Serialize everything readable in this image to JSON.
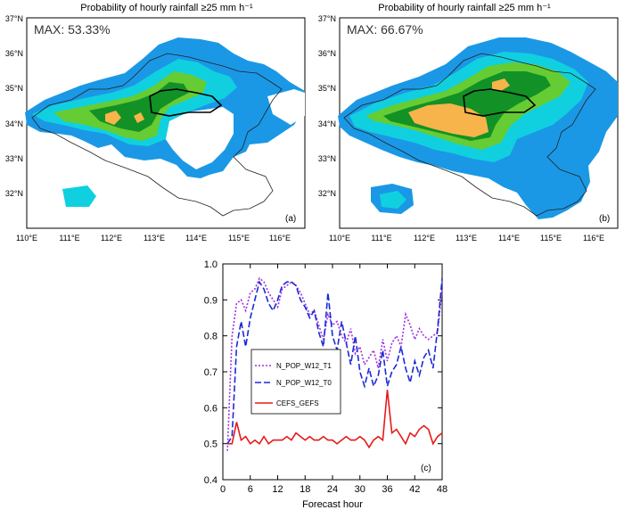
{
  "panels": [
    {
      "title": "Probability of hourly rainfall ≥25 mm h⁻¹",
      "max_label": "MAX: 53.33%",
      "panel_label": "(a)"
    },
    {
      "title": "Probability of hourly rainfall ≥25 mm h⁻¹",
      "max_label": "MAX: 66.67%",
      "panel_label": "(b)"
    }
  ],
  "map_axes": {
    "lat_ticks": [
      "37°N",
      "36°N",
      "35°N",
      "34°N",
      "33°N",
      "32°N"
    ],
    "lon_ticks": [
      "110°E",
      "111°E",
      "112°E",
      "113°E",
      "114°E",
      "115°E",
      "116°E"
    ]
  },
  "colors": {
    "blue": "#1a98e6",
    "cyan": "#10d0e0",
    "green": "#66cc33",
    "dark_green": "#129126",
    "orange": "#f7b44a",
    "series_t1": "#a030e0",
    "series_t0": "#1a2ad8",
    "series_cefs": "#e61a1a"
  },
  "chart_data": {
    "type": "line",
    "panel_label": "(c)",
    "xlabel": "Forecast hour",
    "ylabel": "",
    "xlim": [
      0,
      48
    ],
    "ylim": [
      0.4,
      1.0
    ],
    "x_ticks": [
      0,
      6,
      12,
      18,
      24,
      30,
      36,
      42,
      48
    ],
    "y_ticks": [
      "0.4",
      "0.5",
      "0.6",
      "0.7",
      "0.8",
      "0.9",
      "1.0"
    ],
    "x": [
      1,
      2,
      3,
      4,
      5,
      6,
      7,
      8,
      9,
      10,
      11,
      12,
      13,
      14,
      15,
      16,
      17,
      18,
      19,
      20,
      21,
      22,
      23,
      24,
      25,
      26,
      27,
      28,
      29,
      30,
      31,
      32,
      33,
      34,
      35,
      36,
      37,
      38,
      39,
      40,
      41,
      42,
      43,
      44,
      45,
      46,
      47,
      48
    ],
    "series": [
      {
        "name": "N_POP_W12_T1",
        "style": "dotted",
        "values": [
          0.48,
          0.8,
          0.89,
          0.9,
          0.87,
          0.92,
          0.93,
          0.96,
          0.95,
          0.92,
          0.9,
          0.88,
          0.93,
          0.94,
          0.95,
          0.94,
          0.92,
          0.89,
          0.86,
          0.87,
          0.83,
          0.79,
          0.86,
          0.83,
          0.84,
          0.8,
          0.78,
          0.82,
          0.75,
          0.77,
          0.72,
          0.74,
          0.76,
          0.71,
          0.79,
          0.73,
          0.78,
          0.8,
          0.77,
          0.86,
          0.83,
          0.79,
          0.82,
          0.8,
          0.79,
          0.8,
          0.81,
          0.93
        ]
      },
      {
        "name": "N_POP_W12_T0",
        "style": "dashed",
        "values": [
          0.5,
          0.52,
          0.77,
          0.84,
          0.77,
          0.85,
          0.9,
          0.95,
          0.93,
          0.89,
          0.87,
          0.9,
          0.94,
          0.95,
          0.95,
          0.94,
          0.9,
          0.88,
          0.85,
          0.87,
          0.81,
          0.77,
          0.92,
          0.8,
          0.76,
          0.84,
          0.78,
          0.72,
          0.8,
          0.7,
          0.66,
          0.71,
          0.66,
          0.69,
          0.76,
          0.66,
          0.7,
          0.72,
          0.77,
          0.71,
          0.67,
          0.73,
          0.69,
          0.74,
          0.76,
          0.71,
          0.82,
          0.96
        ]
      },
      {
        "name": "CEFS_GEFS",
        "style": "solid",
        "values": [
          0.5,
          0.5,
          0.56,
          0.51,
          0.52,
          0.5,
          0.51,
          0.5,
          0.52,
          0.5,
          0.51,
          0.51,
          0.51,
          0.52,
          0.51,
          0.53,
          0.52,
          0.51,
          0.52,
          0.51,
          0.51,
          0.52,
          0.51,
          0.51,
          0.5,
          0.51,
          0.52,
          0.51,
          0.51,
          0.52,
          0.51,
          0.49,
          0.51,
          0.52,
          0.51,
          0.65,
          0.53,
          0.54,
          0.52,
          0.5,
          0.53,
          0.52,
          0.54,
          0.55,
          0.54,
          0.5,
          0.52,
          0.53
        ]
      }
    ],
    "legend": [
      "N_POP_W12_T1",
      "N_POP_W12_T0",
      "CEFS_GEFS"
    ],
    "legend_position": "center-left"
  }
}
